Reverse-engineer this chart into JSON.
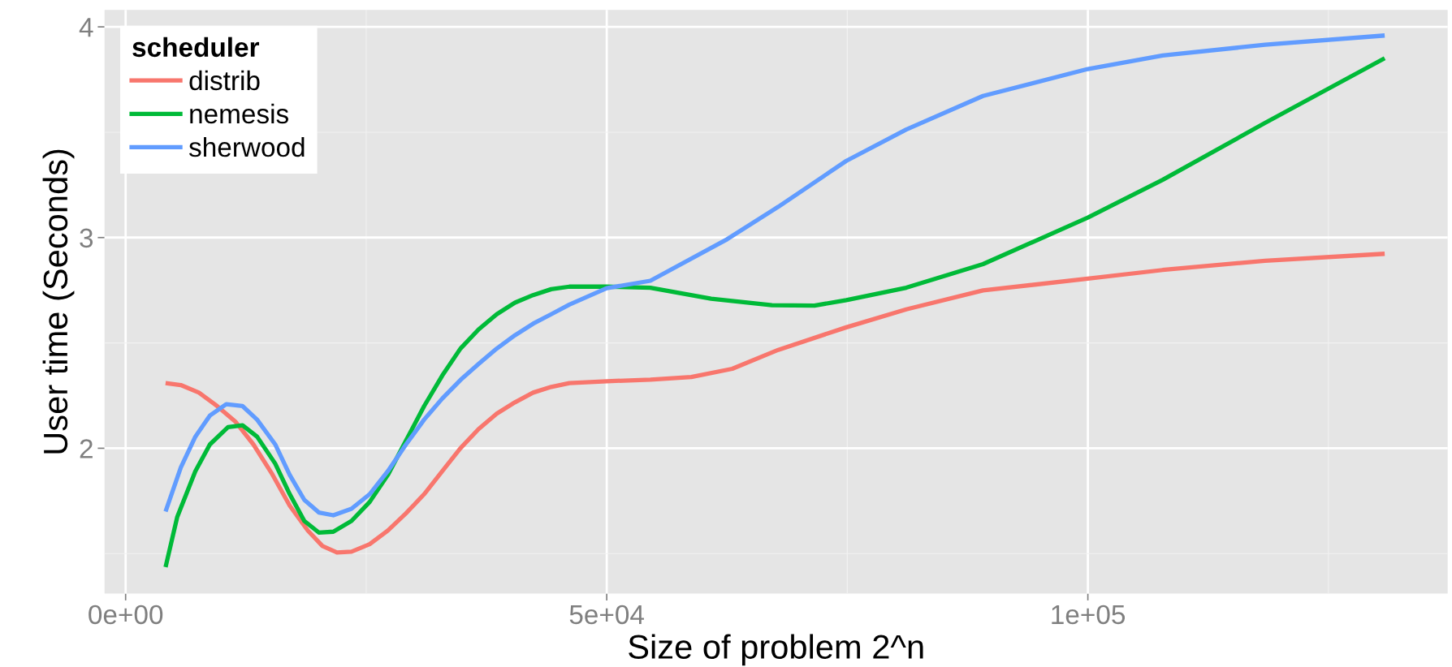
{
  "chart_data": {
    "type": "line",
    "xlabel": "Size of problem 2^n",
    "ylabel": "User time (Seconds)",
    "legend_title": "scheduler",
    "legend": "top left",
    "grid": true,
    "line_style": "solid",
    "xlim": [
      -2190,
      137390
    ],
    "ylim": [
      1.31,
      4.08
    ],
    "xticks": [
      {
        "value": 0,
        "label": "0e+00"
      },
      {
        "value": 50000,
        "label": "5e+04"
      },
      {
        "value": 100000,
        "label": "1e+05"
      }
    ],
    "yticks": [
      2,
      3,
      4
    ],
    "series": [
      {
        "name": "distrib",
        "color": "#f8766d",
        "x": [
          4151,
          5736,
          7623,
          9510,
          11397,
          13284,
          15171,
          17058,
          18945,
          20455,
          21965,
          23474,
          25361,
          27248,
          29135,
          31022,
          32909,
          34796,
          36683,
          38570,
          40457,
          42344,
          44231,
          46118,
          50000,
          54534,
          58790,
          63043,
          67827,
          74900,
          81128,
          89104,
          100000,
          107773,
          118408,
          130848
        ],
        "values": [
          2.309,
          2.3,
          2.264,
          2.2,
          2.127,
          2.018,
          1.882,
          1.727,
          1.609,
          1.536,
          1.505,
          1.509,
          1.545,
          1.609,
          1.691,
          1.782,
          1.891,
          2.0,
          2.091,
          2.164,
          2.218,
          2.264,
          2.291,
          2.309,
          2.318,
          2.326,
          2.338,
          2.377,
          2.467,
          2.574,
          2.659,
          2.749,
          2.805,
          2.846,
          2.89,
          2.923
        ]
      },
      {
        "name": "nemesis",
        "color": "#00ba38",
        "x": [
          4151,
          5359,
          7246,
          8756,
          10643,
          12152,
          13662,
          15549,
          17058,
          18568,
          20078,
          21587,
          23474,
          25361,
          27248,
          29135,
          31022,
          32909,
          34796,
          36683,
          38570,
          40457,
          42344,
          44231,
          46118,
          49892,
          54534,
          60850,
          67166,
          71588,
          74900,
          81128,
          89104,
          100000,
          107773,
          118408,
          130848
        ],
        "values": [
          1.436,
          1.673,
          1.891,
          2.018,
          2.1,
          2.109,
          2.055,
          1.927,
          1.782,
          1.655,
          1.6,
          1.604,
          1.655,
          1.745,
          1.873,
          2.036,
          2.2,
          2.345,
          2.473,
          2.564,
          2.636,
          2.691,
          2.727,
          2.755,
          2.767,
          2.767,
          2.762,
          2.71,
          2.679,
          2.677,
          2.703,
          2.762,
          2.874,
          3.095,
          3.274,
          3.544,
          3.851
        ]
      },
      {
        "name": "sherwood",
        "color": "#619cff",
        "x": [
          4151,
          5736,
          7246,
          8756,
          10454,
          12152,
          13662,
          15549,
          17058,
          18568,
          20078,
          21587,
          23474,
          25361,
          27248,
          29135,
          31022,
          32909,
          34796,
          36683,
          38570,
          40457,
          42344,
          44231,
          46118,
          50000,
          54534,
          62510,
          67827,
          74900,
          81128,
          89104,
          100000,
          107773,
          118408,
          130848
        ],
        "values": [
          1.7,
          1.909,
          2.055,
          2.155,
          2.209,
          2.2,
          2.136,
          2.018,
          1.873,
          1.755,
          1.695,
          1.682,
          1.713,
          1.782,
          1.891,
          2.018,
          2.136,
          2.236,
          2.324,
          2.4,
          2.473,
          2.536,
          2.591,
          2.636,
          2.682,
          2.76,
          2.795,
          2.992,
          3.146,
          3.364,
          3.513,
          3.672,
          3.8,
          3.864,
          3.915,
          3.959
        ]
      }
    ]
  }
}
